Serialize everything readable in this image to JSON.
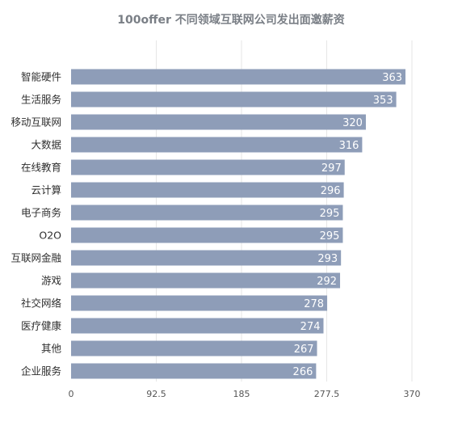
{
  "chart_data": {
    "type": "bar",
    "orientation": "horizontal",
    "title": "100offer 不同领域互联网公司发出面邀薪资",
    "categories": [
      "智能硬件",
      "生活服务",
      "移动互联网",
      "大数据",
      "在线教育",
      "云计算",
      "电子商务",
      "O2O",
      "互联网金融",
      "游戏",
      "社交网络",
      "医疗健康",
      "其他",
      "企业服务"
    ],
    "values": [
      363,
      353,
      320,
      316,
      297,
      296,
      295,
      295,
      293,
      292,
      278,
      274,
      267,
      266
    ],
    "value_labels": [
      "363",
      "353",
      "320",
      "316",
      "297",
      "296",
      "295",
      "295",
      "293",
      "292",
      "278",
      "274",
      "267",
      "266"
    ],
    "xlim": [
      0,
      370
    ],
    "ticks": [
      0,
      92.5,
      185,
      277.5,
      370
    ],
    "tick_labels": [
      "0",
      "92.5",
      "185",
      "277.5",
      "370"
    ],
    "grid": true,
    "bar_color": "#8e9db8",
    "grid_color": "#e6e6e6"
  }
}
